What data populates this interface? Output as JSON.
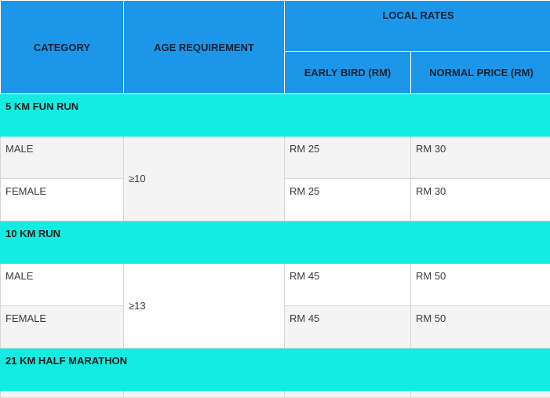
{
  "header": {
    "category": "CATEGORY",
    "age_requirement": "AGE REQUIREMENT",
    "local_rates": "LOCAL RATES",
    "early_bird": "EARLY BIRD (RM)",
    "normal_price": "NORMAL PRICE (RM)"
  },
  "sections": [
    {
      "title": "5 KM FUN RUN",
      "age": "≥10",
      "rows": [
        {
          "category": "MALE",
          "early": "RM 25",
          "normal": "RM 30"
        },
        {
          "category": "FEMALE",
          "early": "RM 25",
          "normal": "RM 30"
        }
      ]
    },
    {
      "title": "10 KM RUN",
      "age": "≥13",
      "rows": [
        {
          "category": "MALE",
          "early": "RM 45",
          "normal": "RM 50"
        },
        {
          "category": "FEMALE",
          "early": "RM 45",
          "normal": "RM 50"
        }
      ]
    },
    {
      "title": "21 KM HALF MARATHON",
      "age": "",
      "rows": []
    }
  ],
  "colors": {
    "header_bg": "#1c96e8",
    "section_bg": "#13ece1",
    "row_alt_bg": "#f4f4f4"
  }
}
